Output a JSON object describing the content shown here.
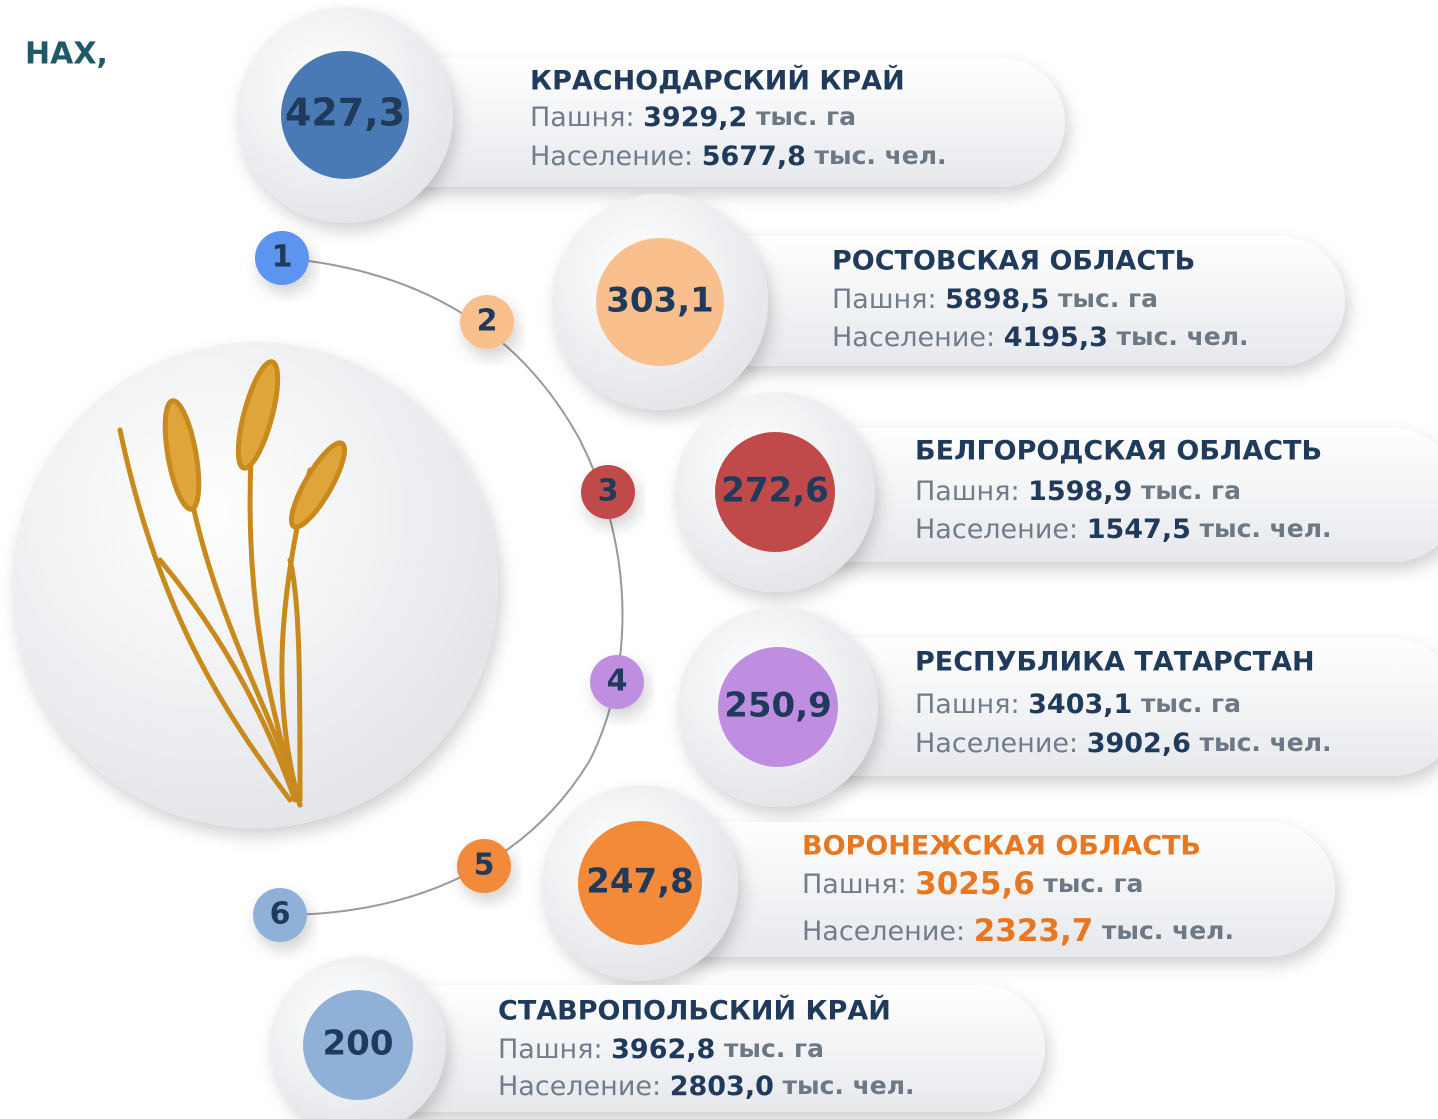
{
  "header": {
    "title": "НАХ,"
  },
  "items": [
    {
      "rank": "1",
      "value": "427,3",
      "region": "КРАСНОДАРСКИЙ КРАЙ",
      "arable_label": "Пашня:",
      "arable": "3929,2",
      "arable_unit": "тыс. га",
      "population_label": "Население:",
      "population": "5677,8",
      "population_unit": "тыс. чел.",
      "color": "#4a7ab5",
      "badge_color": "#5b94f0",
      "accent": "#1f3a5a"
    },
    {
      "rank": "2",
      "value": "303,1",
      "region": "РОСТОВСКАЯ ОБЛАСТЬ",
      "arable_label": "Пашня:",
      "arable": "5898,5",
      "arable_unit": "тыс. га",
      "population_label": "Население:",
      "population": "4195,3",
      "population_unit": "тыс. чел.",
      "color": "#f9c08d",
      "badge_color": "#f9c08d",
      "accent": "#1f3a5a"
    },
    {
      "rank": "3",
      "value": "272,6",
      "region": "БЕЛГОРОДСКАЯ ОБЛАСТЬ",
      "arable_label": "Пашня:",
      "arable": "1598,9",
      "arable_unit": "тыс. га",
      "population_label": "Население:",
      "population": "1547,5",
      "population_unit": "тыс. чел.",
      "color": "#c0494a",
      "badge_color": "#c0494a",
      "accent": "#1f3a5a"
    },
    {
      "rank": "4",
      "value": "250,9",
      "region": "РЕСПУБЛИКА ТАТАРСТАН",
      "arable_label": "Пашня:",
      "arable": "3403,1",
      "arable_unit": "тыс. га",
      "population_label": "Население:",
      "population": "3902,6",
      "population_unit": "тыс. чел.",
      "color": "#c08ee0",
      "badge_color": "#c08ee0",
      "accent": "#1f3a5a"
    },
    {
      "rank": "5",
      "value": "247,8",
      "region": "ВОРОНЕЖСКАЯ ОБЛАСТЬ",
      "arable_label": "Пашня:",
      "arable": "3025,6",
      "arable_unit": "тыс. га",
      "population_label": "Население:",
      "population": "2323,7",
      "population_unit": "тыс. чел.",
      "color": "#f28a3a",
      "badge_color": "#f28a3a",
      "accent": "#e87722"
    },
    {
      "rank": "6",
      "value": "200",
      "region": "СТАВРОПОЛЬСКИЙ КРАЙ",
      "arable_label": "Пашня:",
      "arable": "3962,8",
      "arable_unit": "тыс. га",
      "population_label": "Население:",
      "population": "2803,0",
      "population_unit": "тыс. чел.",
      "color": "#8fb1d8",
      "badge_color": "#8fb1d8",
      "accent": "#1f3a5a"
    }
  ]
}
